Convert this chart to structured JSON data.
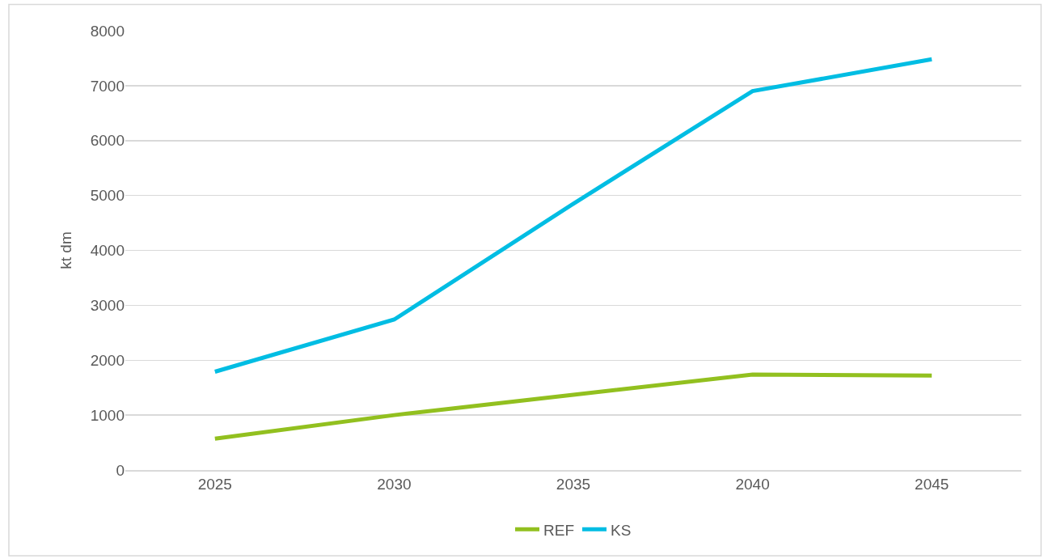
{
  "chart_data": {
    "type": "line",
    "ylabel": "kt dm",
    "categories": [
      "2025",
      "2030",
      "2035",
      "2040",
      "2045"
    ],
    "series": [
      {
        "name": "REF",
        "color": "#92c01f",
        "values": [
          570,
          1000,
          1370,
          1740,
          1720
        ]
      },
      {
        "name": "KS",
        "color": "#00bde3",
        "values": [
          1790,
          2740,
          4850,
          6900,
          7480
        ]
      }
    ],
    "ylim": [
      0,
      8000
    ],
    "yticks": [
      0,
      1000,
      2000,
      3000,
      4000,
      5000,
      6000,
      7000,
      8000
    ],
    "grid": "y",
    "legend": "bottom",
    "marker": "none",
    "line_style": "solid"
  }
}
